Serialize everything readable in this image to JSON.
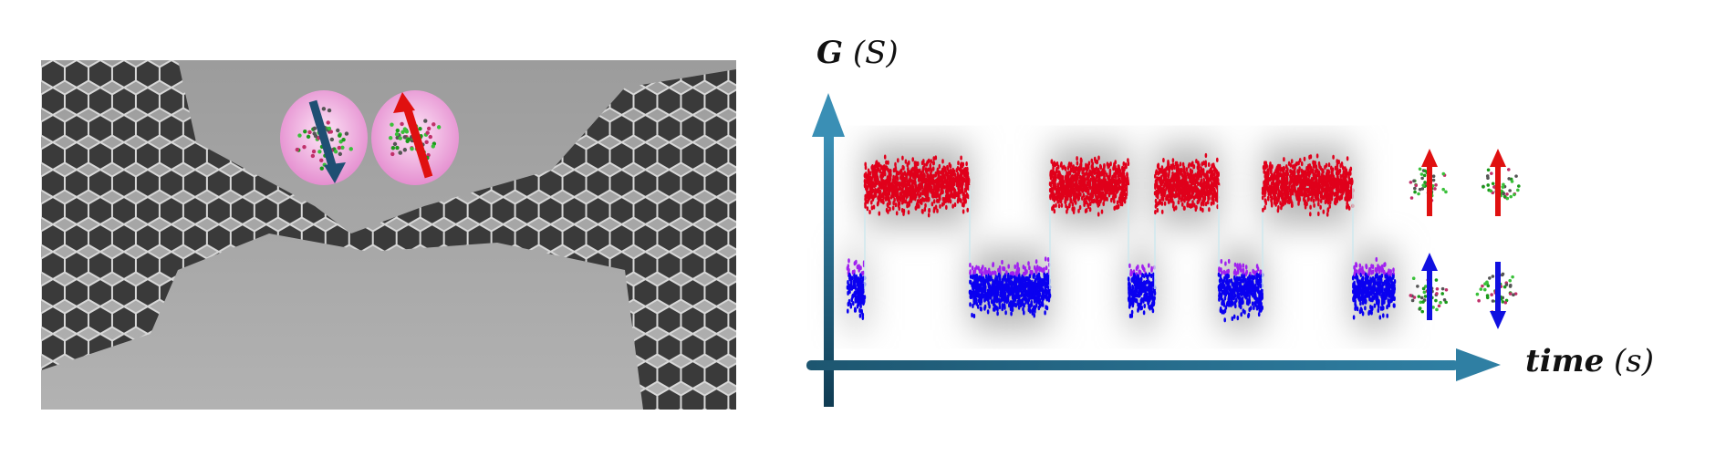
{
  "diagram": {
    "y_axis_label": {
      "symbol": "G",
      "unit": "(S)"
    },
    "x_axis_label": {
      "symbol": "time",
      "unit": "(s)"
    },
    "signal_states": [
      "low",
      "high",
      "low",
      "high",
      "low",
      "high",
      "low",
      "high",
      "low"
    ],
    "colors": {
      "high": "#e0001b",
      "low": "#0a00f0",
      "low_edge": "#a020f0",
      "axis": "#2a6f8f",
      "molecule_bubble": "#f2b8e4"
    },
    "legend": [
      {
        "state": "high",
        "spins": [
          "up",
          "up"
        ],
        "arrow_color": "#e01010"
      },
      {
        "state": "low",
        "spins": [
          "up",
          "down"
        ],
        "arrow_color": "#1010e0"
      }
    ]
  }
}
